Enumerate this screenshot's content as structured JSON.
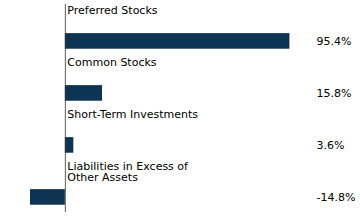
{
  "chart_data": {
    "type": "bar",
    "orientation": "horizontal",
    "categories": [
      "Preferred Stocks",
      "Common Stocks",
      "Short-Term Investments",
      "Liabilities in Excess of\nOther Assets"
    ],
    "values": [
      95.4,
      15.8,
      3.6,
      -14.8
    ],
    "value_labels": [
      "95.4%",
      "15.8%",
      "3.6%",
      "-14.8%"
    ],
    "color": "#0d3452",
    "xlim": [
      -25,
      105
    ],
    "tick_labels": false,
    "data_labels": true
  }
}
